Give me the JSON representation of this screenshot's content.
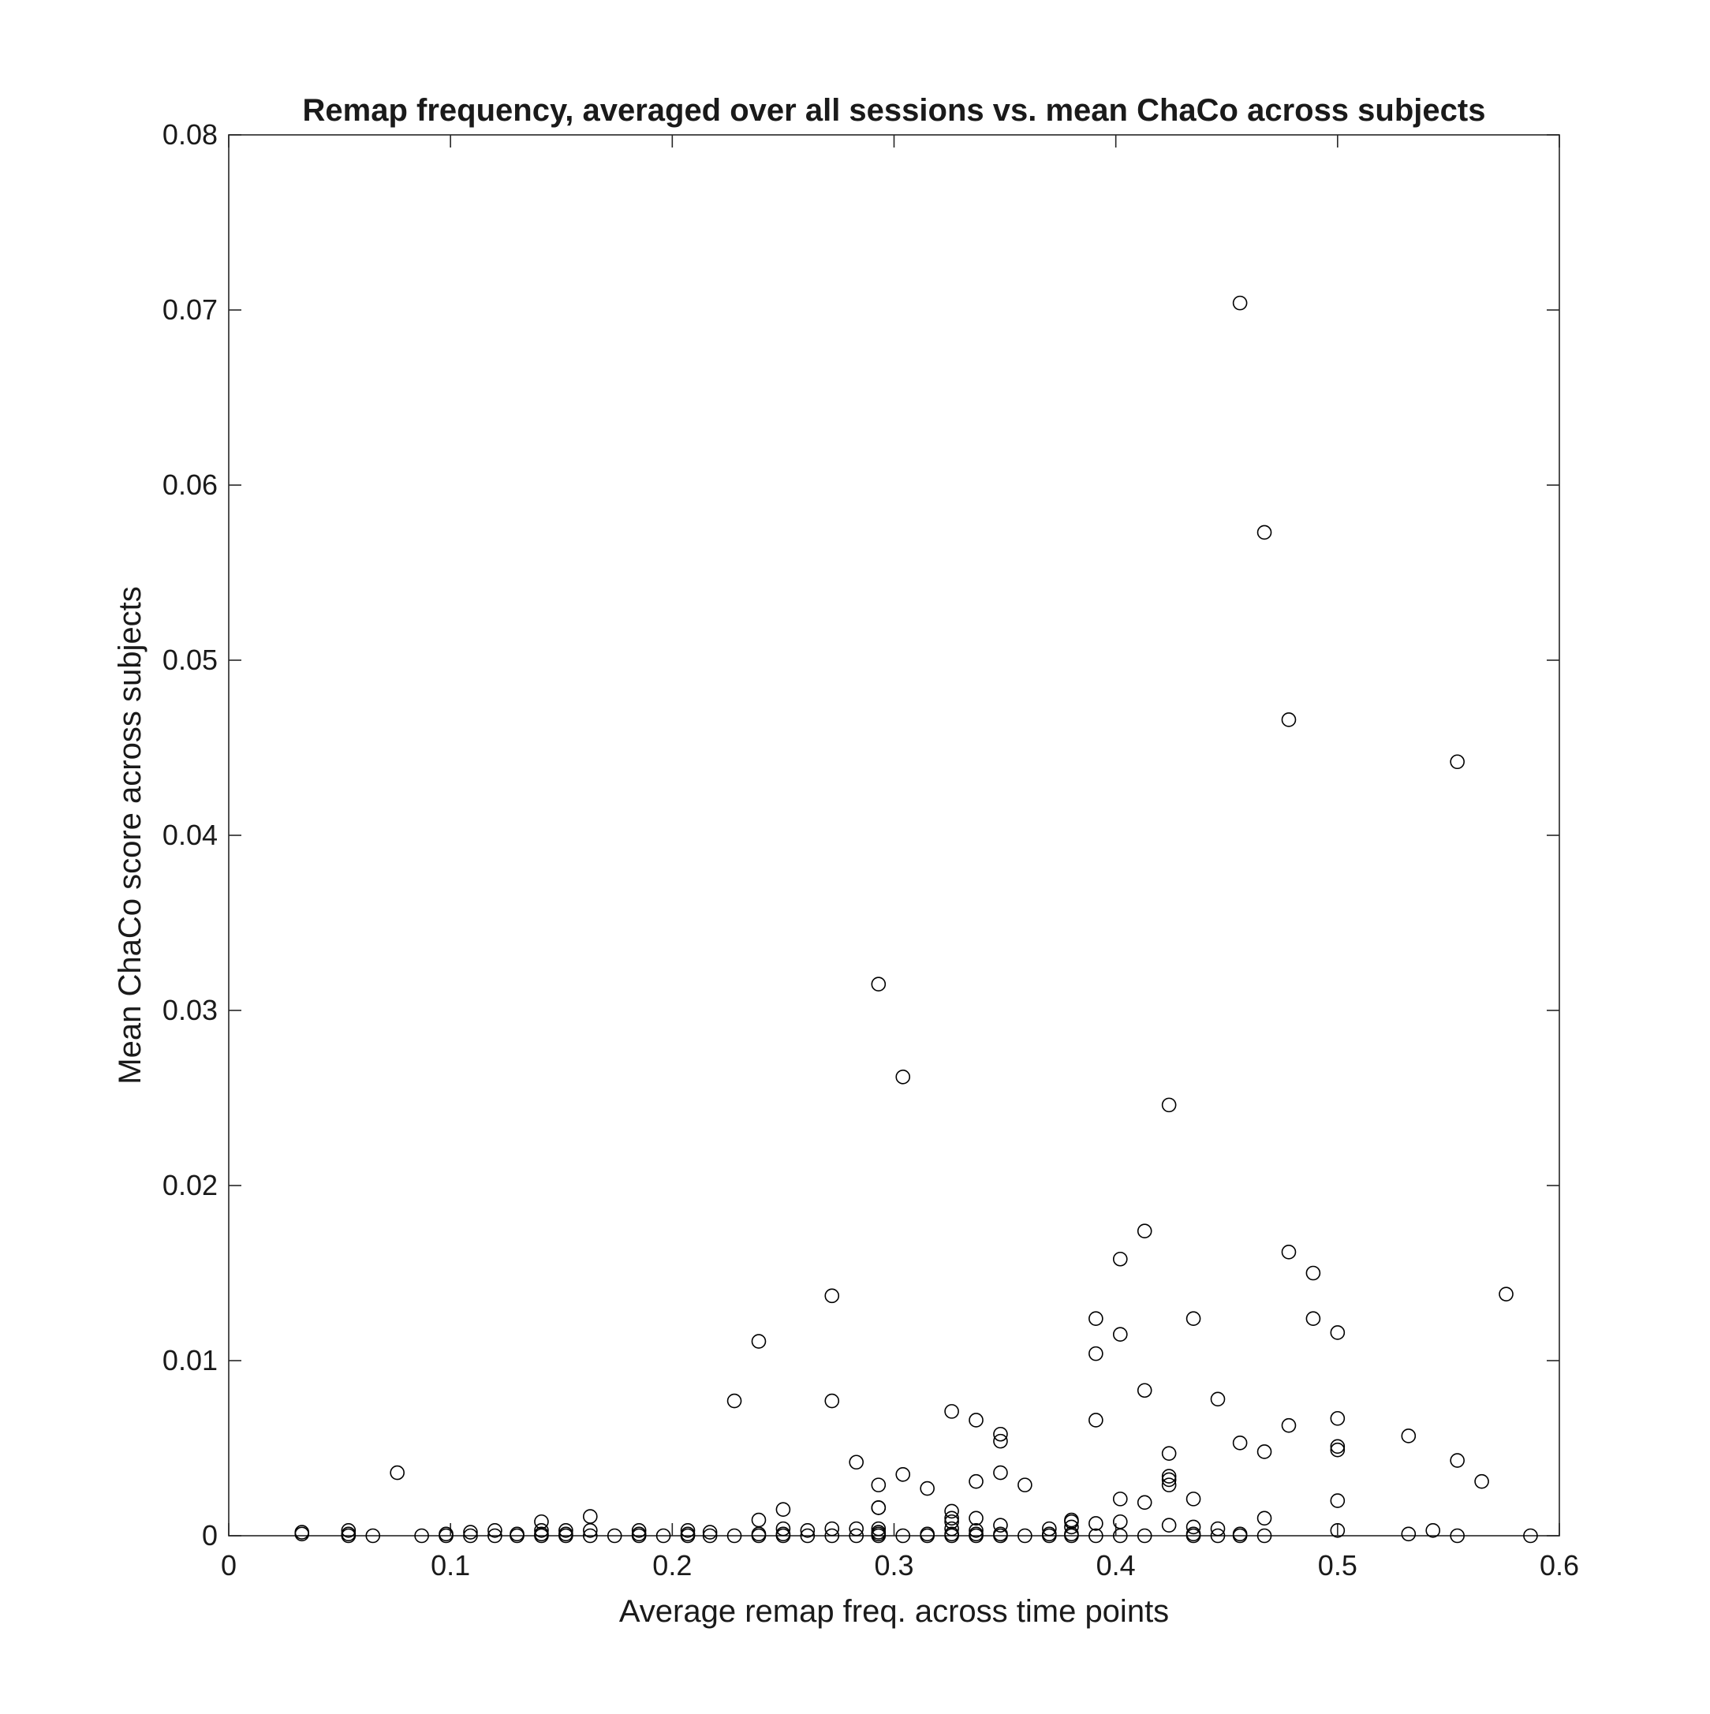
{
  "chart_data": {
    "type": "scatter",
    "title": "Remap frequency, averaged over all sessions vs. mean ChaCo across subjects",
    "xlabel": "Average remap freq. across time points",
    "ylabel": "Mean ChaCo score across subjects",
    "xlim": [
      0,
      0.6
    ],
    "ylim": [
      0,
      0.08
    ],
    "xticks": [
      0,
      0.1,
      0.2,
      0.3,
      0.4,
      0.5,
      0.6
    ],
    "xtick_labels": [
      "0",
      "0.1",
      "0.2",
      "0.3",
      "0.4",
      "0.5",
      "0.6"
    ],
    "yticks": [
      0,
      0.01,
      0.02,
      0.03,
      0.04,
      0.05,
      0.06,
      0.07,
      0.08
    ],
    "ytick_labels": [
      "0",
      "0.01",
      "0.02",
      "0.03",
      "0.04",
      "0.05",
      "0.06",
      "0.07",
      "0.08"
    ],
    "grid": false,
    "marker": "open-circle",
    "marker_color": "#000000",
    "series": [
      {
        "points": [
          [
            0.456,
            0.0704
          ],
          [
            0.467,
            0.0573
          ],
          [
            0.478,
            0.0466
          ],
          [
            0.554,
            0.0442
          ],
          [
            0.293,
            0.0315
          ],
          [
            0.304,
            0.0262
          ],
          [
            0.424,
            0.0246
          ],
          [
            0.413,
            0.0174
          ],
          [
            0.478,
            0.0162
          ],
          [
            0.402,
            0.0158
          ],
          [
            0.489,
            0.015
          ],
          [
            0.272,
            0.0137
          ],
          [
            0.576,
            0.0138
          ],
          [
            0.391,
            0.0124
          ],
          [
            0.435,
            0.0124
          ],
          [
            0.489,
            0.0124
          ],
          [
            0.402,
            0.0115
          ],
          [
            0.5,
            0.0116
          ],
          [
            0.239,
            0.0111
          ],
          [
            0.391,
            0.0104
          ],
          [
            0.413,
            0.0083
          ],
          [
            0.446,
            0.0078
          ],
          [
            0.228,
            0.0077
          ],
          [
            0.272,
            0.0077
          ],
          [
            0.326,
            0.0071
          ],
          [
            0.337,
            0.0066
          ],
          [
            0.391,
            0.0066
          ],
          [
            0.5,
            0.0067
          ],
          [
            0.478,
            0.0063
          ],
          [
            0.348,
            0.0058
          ],
          [
            0.348,
            0.0054
          ],
          [
            0.456,
            0.0053
          ],
          [
            0.532,
            0.0057
          ],
          [
            0.5,
            0.0051
          ],
          [
            0.5,
            0.0049
          ],
          [
            0.467,
            0.0048
          ],
          [
            0.424,
            0.0047
          ],
          [
            0.283,
            0.0042
          ],
          [
            0.554,
            0.0043
          ],
          [
            0.076,
            0.0036
          ],
          [
            0.304,
            0.0035
          ],
          [
            0.348,
            0.0036
          ],
          [
            0.424,
            0.0034
          ],
          [
            0.424,
            0.0032
          ],
          [
            0.424,
            0.0029
          ],
          [
            0.337,
            0.0031
          ],
          [
            0.565,
            0.0031
          ],
          [
            0.293,
            0.0029
          ],
          [
            0.315,
            0.0027
          ],
          [
            0.359,
            0.0029
          ],
          [
            0.402,
            0.0021
          ],
          [
            0.413,
            0.0019
          ],
          [
            0.435,
            0.0021
          ],
          [
            0.5,
            0.002
          ],
          [
            0.293,
            0.0016
          ],
          [
            0.293,
            0.0016
          ],
          [
            0.25,
            0.0015
          ],
          [
            0.326,
            0.0014
          ],
          [
            0.163,
            0.0011
          ],
          [
            0.239,
            0.0009
          ],
          [
            0.326,
            0.001
          ],
          [
            0.326,
            0.0008
          ],
          [
            0.337,
            0.001
          ],
          [
            0.38,
            0.0009
          ],
          [
            0.38,
            0.0008
          ],
          [
            0.467,
            0.001
          ],
          [
            0.141,
            0.0008
          ],
          [
            0.391,
            0.0007
          ],
          [
            0.402,
            0.0008
          ],
          [
            0.424,
            0.0006
          ],
          [
            0.348,
            0.0006
          ],
          [
            0.435,
            0.0005
          ],
          [
            0.38,
            0.0005
          ],
          [
            0.5,
            0.0003
          ],
          [
            0.054,
            0.0003
          ],
          [
            0.109,
            0.0002
          ],
          [
            0.12,
            0.0003
          ],
          [
            0.141,
            0.0003
          ],
          [
            0.152,
            0.0003
          ],
          [
            0.163,
            0.0003
          ],
          [
            0.185,
            0.0003
          ],
          [
            0.207,
            0.0003
          ],
          [
            0.217,
            0.0002
          ],
          [
            0.25,
            0.0004
          ],
          [
            0.261,
            0.0003
          ],
          [
            0.272,
            0.0004
          ],
          [
            0.283,
            0.0004
          ],
          [
            0.293,
            0.0004
          ],
          [
            0.326,
            0.0004
          ],
          [
            0.337,
            0.0003
          ],
          [
            0.37,
            0.0004
          ],
          [
            0.446,
            0.0004
          ],
          [
            0.543,
            0.0003
          ],
          [
            0.293,
            0.0002
          ],
          [
            0.033,
            0.0002
          ],
          [
            0.033,
            0.0001
          ],
          [
            0.054,
            0.0001
          ],
          [
            0.054,
            0.0
          ],
          [
            0.065,
            0.0
          ],
          [
            0.087,
            0.0
          ],
          [
            0.098,
            0.0001
          ],
          [
            0.098,
            0.0
          ],
          [
            0.109,
            0.0
          ],
          [
            0.12,
            0.0
          ],
          [
            0.13,
            0.0001
          ],
          [
            0.13,
            0.0
          ],
          [
            0.141,
            0.0001
          ],
          [
            0.141,
            0.0
          ],
          [
            0.152,
            0.0001
          ],
          [
            0.152,
            0.0
          ],
          [
            0.163,
            0.0
          ],
          [
            0.174,
            0.0
          ],
          [
            0.185,
            0.0001
          ],
          [
            0.185,
            0.0
          ],
          [
            0.196,
            0.0
          ],
          [
            0.207,
            0.0001
          ],
          [
            0.207,
            0.0
          ],
          [
            0.217,
            0.0
          ],
          [
            0.228,
            0.0
          ],
          [
            0.239,
            0.0001
          ],
          [
            0.239,
            0.0
          ],
          [
            0.25,
            0.0001
          ],
          [
            0.25,
            0.0
          ],
          [
            0.261,
            0.0
          ],
          [
            0.272,
            0.0
          ],
          [
            0.283,
            0.0
          ],
          [
            0.293,
            0.0001
          ],
          [
            0.293,
            0.0
          ],
          [
            0.304,
            0.0
          ],
          [
            0.315,
            0.0001
          ],
          [
            0.315,
            0.0
          ],
          [
            0.326,
            0.0001
          ],
          [
            0.326,
            0.0
          ],
          [
            0.337,
            0.0001
          ],
          [
            0.337,
            0.0
          ],
          [
            0.348,
            0.0001
          ],
          [
            0.348,
            0.0
          ],
          [
            0.359,
            0.0
          ],
          [
            0.37,
            0.0001
          ],
          [
            0.37,
            0.0
          ],
          [
            0.38,
            0.0001
          ],
          [
            0.38,
            0.0
          ],
          [
            0.391,
            0.0
          ],
          [
            0.402,
            0.0
          ],
          [
            0.413,
            0.0
          ],
          [
            0.435,
            0.0001
          ],
          [
            0.435,
            0.0
          ],
          [
            0.446,
            0.0
          ],
          [
            0.456,
            0.0001
          ],
          [
            0.456,
            0.0
          ],
          [
            0.467,
            0.0
          ],
          [
            0.532,
            0.0001
          ],
          [
            0.554,
            0.0
          ],
          [
            0.587,
            0.0
          ]
        ]
      }
    ]
  }
}
